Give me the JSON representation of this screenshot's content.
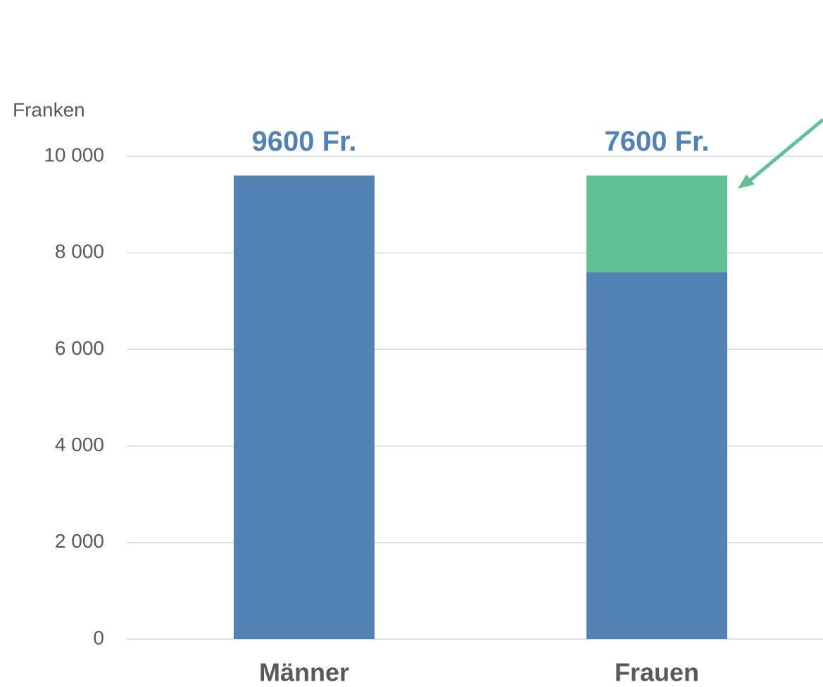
{
  "chart_data": {
    "type": "stacked_bar",
    "y_axis_label": "Franken",
    "categories": [
      "Männer",
      "Frauen"
    ],
    "series": [
      {
        "color": "#5282b4",
        "values": [
          9600,
          7600
        ],
        "value_labels": [
          "9600 Fr.",
          "7600 Fr."
        ]
      },
      {
        "color": "#62c096",
        "values": [
          null,
          2000
        ]
      }
    ],
    "ylim": [
      0,
      10000
    ],
    "yticks": [
      0,
      {
        "value": 2000,
        "label": "2 000"
      },
      {
        "value": 4000,
        "label": "4 000"
      },
      {
        "value": 6000,
        "label": "6 000"
      },
      {
        "value": 8000,
        "label": "8 000"
      },
      {
        "value": 10000,
        "label": "10 000"
      }
    ],
    "grid": true
  }
}
